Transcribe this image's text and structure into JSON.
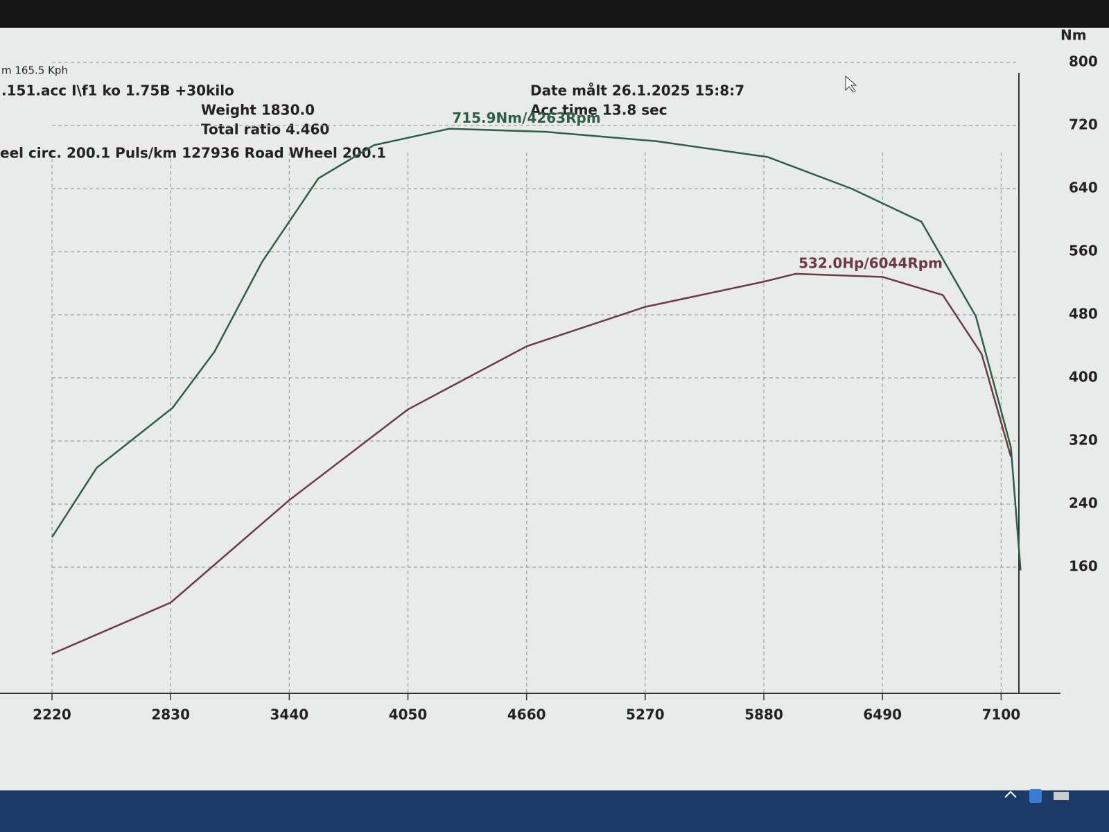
{
  "header": {
    "speed": "m 165.5 Kph",
    "file": ".151.acc   I\\f1 ko 1.75B +30kilo",
    "weight": "Weight  1830.0",
    "ratio": "Total ratio 4.460",
    "wheel": "eel circ. 200.1   Puls/km  127936   Road Wheel 200.1",
    "date": "Date målt 26.1.2025 15:8:7",
    "acc": "Acc time   13.8 sec"
  },
  "chart_data": {
    "type": "line",
    "ylabel": "Nm",
    "xlim": [
      2220,
      7405
    ],
    "ylim": [
      0,
      800
    ],
    "xticks": [
      2220,
      2830,
      3440,
      4050,
      4660,
      5270,
      5880,
      6490,
      7100
    ],
    "yticks": [
      160,
      240,
      320,
      400,
      480,
      560,
      640,
      720,
      800
    ],
    "grid": true,
    "annotations": [
      "715.9Nm/4263Rpm",
      "532.0Hp/6044Rpm"
    ],
    "series": [
      {
        "color": "#2e5e45",
        "x": [
          2220,
          2450,
          2840,
          3055,
          3300,
          3590,
          3875,
          4263,
          4760,
          5330,
          5900,
          6330,
          6690,
          6970,
          7150,
          7200
        ],
        "values": [
          198,
          286,
          362,
          433,
          547,
          653,
          695,
          715.9,
          712,
          700,
          680,
          640,
          598,
          478,
          312,
          156
        ]
      },
      {
        "color": "#6b3a44",
        "x": [
          2220,
          2830,
          3440,
          4050,
          4660,
          5270,
          5880,
          6044,
          6490,
          6800,
          7000,
          7150
        ],
        "values": [
          50,
          115,
          245,
          360,
          440,
          490,
          522,
          532,
          528,
          505,
          430,
          300
        ]
      }
    ]
  }
}
